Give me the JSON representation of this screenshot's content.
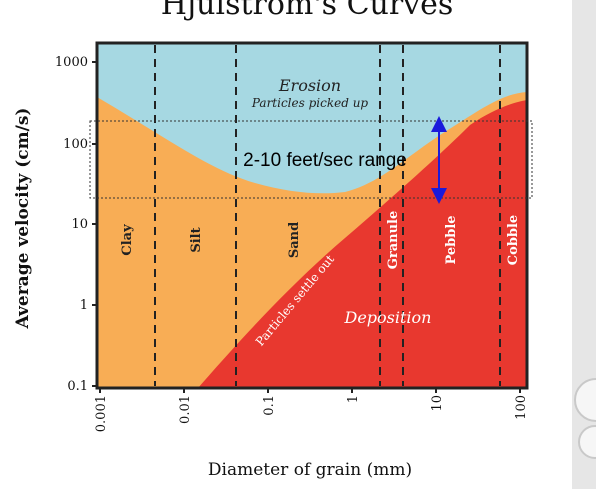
{
  "title": "Hjulstrom's Curves",
  "axes": {
    "ylabel": "Average velocity (cm/s)",
    "xlabel": "Diameter of grain (mm)",
    "y_ticks": [
      "1000",
      "100",
      "10",
      "1",
      "0.1"
    ],
    "x_ticks": [
      "0.001",
      "0.01",
      "0.1",
      "1",
      "10",
      "100"
    ]
  },
  "regions": {
    "erosion": "Erosion",
    "erosion_sub": "Particles picked up",
    "deposition": "Deposition",
    "settle": "Particles settle out"
  },
  "grain_classes": [
    "Clay",
    "Silt",
    "Sand",
    "Granule",
    "Pebble",
    "Cobble"
  ],
  "annotation": {
    "text": "2-10 feet/sec range"
  },
  "colors": {
    "erosion": "#a6d8e2",
    "transport": "#f8ad55",
    "deposition": "#e8382f",
    "arrow": "#1a1adb"
  }
}
